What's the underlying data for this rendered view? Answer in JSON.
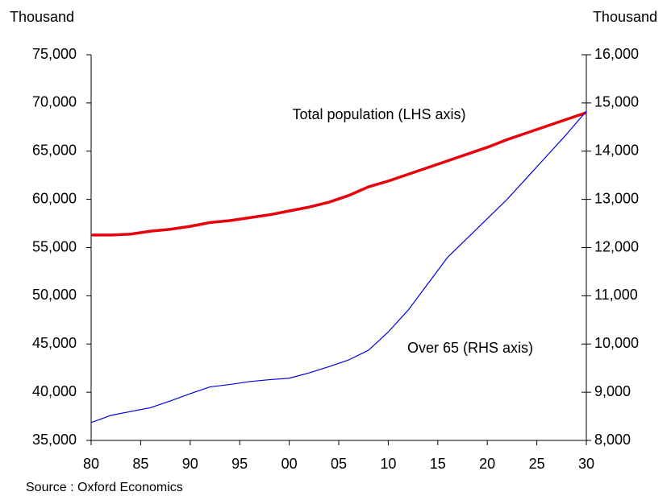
{
  "chart_data": {
    "type": "line",
    "y_label": "Thousand",
    "y2_label": "Thousand",
    "source": "Source : Oxford Economics",
    "x": [
      1980,
      1982,
      1984,
      1986,
      1988,
      1990,
      1992,
      1994,
      1996,
      1998,
      2000,
      2002,
      2004,
      2006,
      2008,
      2010,
      2012,
      2014,
      2016,
      2018,
      2020,
      2022,
      2024,
      2026,
      2028,
      2030
    ],
    "series": [
      {
        "name": "Total population (LHS axis)",
        "color": "#e8000b",
        "values": [
          56300,
          56300,
          56400,
          56700,
          56900,
          57200,
          57600,
          57800,
          58100,
          58400,
          58800,
          59200,
          59700,
          60400,
          61300,
          61900,
          62600,
          63300,
          64000,
          64700,
          65400,
          66200,
          66900,
          67600,
          68300,
          69000
        ]
      },
      {
        "name": "Over 65 (RHS axis)",
        "color": "#0000e0",
        "axis": "y2",
        "values": [
          8370,
          8520,
          8600,
          8680,
          8820,
          8970,
          9110,
          9160,
          9220,
          9260,
          9290,
          9400,
          9530,
          9670,
          9870,
          10250,
          10700,
          11250,
          11800,
          12200,
          12600,
          13000,
          13450,
          13900,
          14350,
          14830
        ]
      }
    ],
    "xlim": [
      1980,
      2030
    ],
    "xticks": [
      {
        "value": 1980,
        "label": "80"
      },
      {
        "value": 1985,
        "label": "85"
      },
      {
        "value": 1990,
        "label": "90"
      },
      {
        "value": 1995,
        "label": "95"
      },
      {
        "value": 2000,
        "label": "00"
      },
      {
        "value": 2005,
        "label": "05"
      },
      {
        "value": 2010,
        "label": "10"
      },
      {
        "value": 2015,
        "label": "15"
      },
      {
        "value": 2020,
        "label": "20"
      },
      {
        "value": 2025,
        "label": "25"
      },
      {
        "value": 2030,
        "label": "30"
      }
    ],
    "ylim": [
      35000,
      75000
    ],
    "yticks": [
      {
        "value": 35000,
        "label": "35,000"
      },
      {
        "value": 40000,
        "label": "40,000"
      },
      {
        "value": 45000,
        "label": "45,000"
      },
      {
        "value": 50000,
        "label": "50,000"
      },
      {
        "value": 55000,
        "label": "55,000"
      },
      {
        "value": 60000,
        "label": "60,000"
      },
      {
        "value": 65000,
        "label": "65,000"
      },
      {
        "value": 70000,
        "label": "70,000"
      },
      {
        "value": 75000,
        "label": "75,000"
      }
    ],
    "y2lim": [
      8000,
      16000
    ],
    "y2ticks": [
      {
        "value": 8000,
        "label": "8,000"
      },
      {
        "value": 9000,
        "label": "9,000"
      },
      {
        "value": 10000,
        "label": "10,000"
      },
      {
        "value": 11000,
        "label": "11,000"
      },
      {
        "value": 12000,
        "label": "12,000"
      },
      {
        "value": 13000,
        "label": "13,000"
      },
      {
        "value": 14000,
        "label": "14,000"
      },
      {
        "value": 15000,
        "label": "15,000"
      },
      {
        "value": 16000,
        "label": "16,000"
      }
    ],
    "grid": false
  }
}
